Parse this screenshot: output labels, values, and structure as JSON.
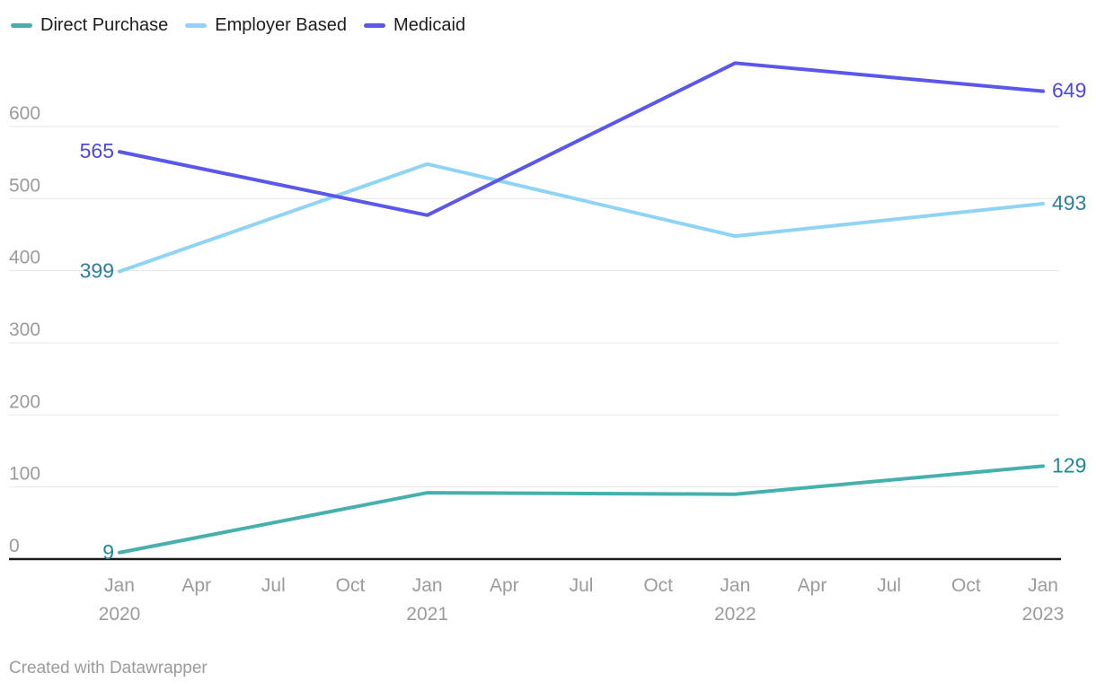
{
  "chart_data": {
    "type": "line",
    "title": "",
    "xlabel": "",
    "ylabel": "",
    "grid": true,
    "legend_position": "top-left",
    "ylim": [
      0,
      700
    ],
    "y_ticks": [
      0,
      100,
      200,
      300,
      400,
      500,
      600
    ],
    "x_tick_labels": [
      {
        "month": "Jan",
        "year": "2020"
      },
      {
        "month": "Apr"
      },
      {
        "month": "Jul"
      },
      {
        "month": "Oct"
      },
      {
        "month": "Jan",
        "year": "2021"
      },
      {
        "month": "Apr"
      },
      {
        "month": "Jul"
      },
      {
        "month": "Oct"
      },
      {
        "month": "Jan",
        "year": "2022"
      },
      {
        "month": "Apr"
      },
      {
        "month": "Jul"
      },
      {
        "month": "Oct"
      },
      {
        "month": "Jan",
        "year": "2023"
      }
    ],
    "point_x_indices": [
      0,
      4,
      8,
      12
    ],
    "point_labels": [
      "Jan 2020",
      "Jan 2021",
      "Jan 2022",
      "Jan 2023"
    ],
    "series": [
      {
        "name": "Direct Purchase",
        "slug": "direct-purchase",
        "color": "#45b0ac",
        "label_color": "#1d8a90",
        "values": [
          9,
          92,
          90,
          129
        ],
        "start_label": "9",
        "end_label": "129"
      },
      {
        "name": "Employer Based",
        "slug": "employer-based",
        "color": "#8fd3f5",
        "label_color": "#2f7e9d",
        "values": [
          399,
          548,
          448,
          493
        ],
        "start_label": "399",
        "end_label": "493"
      },
      {
        "name": "Medicaid",
        "slug": "medicaid",
        "color": "#5a57ea",
        "label_color": "#4a49e5",
        "values": [
          565,
          477,
          688,
          649
        ],
        "start_label": "565",
        "end_label": "649"
      }
    ],
    "colors": {
      "gridline": "#e8e8e8",
      "axis_baseline": "#1a1a1a",
      "tick_label": "#9b9b9b"
    }
  },
  "footer": {
    "credit": "Created with Datawrapper"
  }
}
